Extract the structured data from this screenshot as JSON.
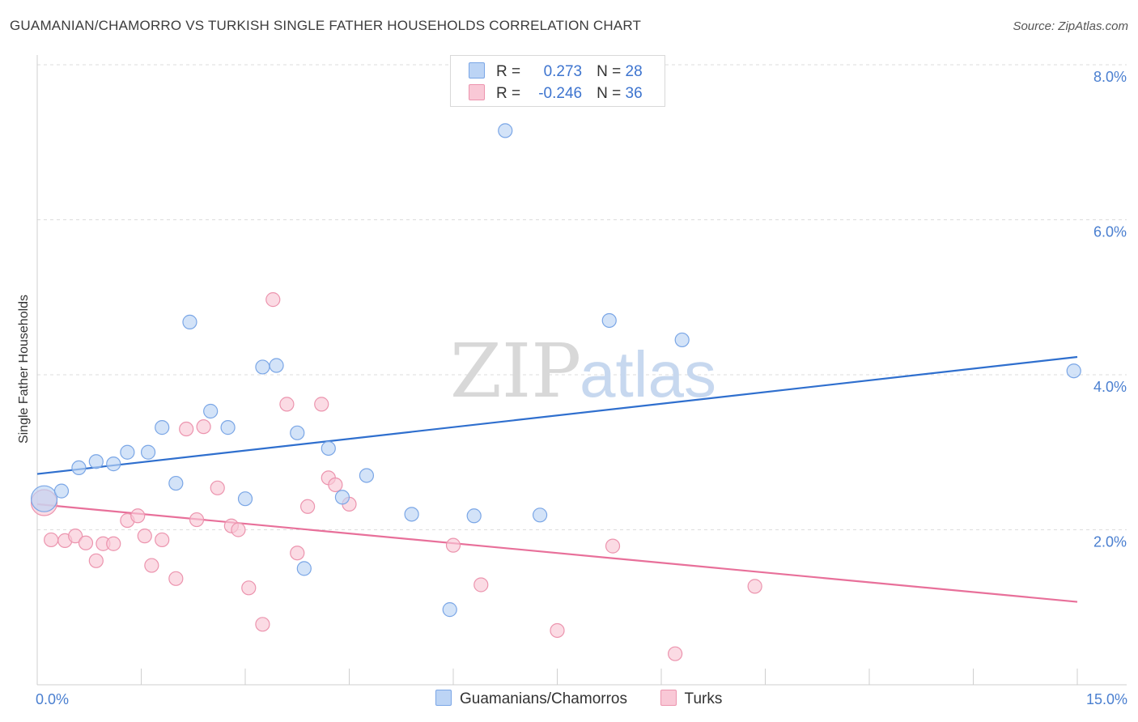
{
  "title": "GUAMANIAN/CHAMORRO VS TURKISH SINGLE FATHER HOUSEHOLDS CORRELATION CHART",
  "source": "Source: ZipAtlas.com",
  "watermark": {
    "zip": "ZIP",
    "atlas": "atlas"
  },
  "legend": {
    "r_label": "R =",
    "n_label": "N =",
    "rows": [
      {
        "r": "0.273",
        "n": "28",
        "fill": "#bcd4f5",
        "stroke": "#7aa6e6"
      },
      {
        "r": "-0.246",
        "n": "36",
        "fill": "#f9c8d6",
        "stroke": "#ec94ae"
      }
    ]
  },
  "bottom_legend": [
    {
      "label": "Guamanians/Chamorros",
      "fill": "#bcd4f5",
      "stroke": "#7aa6e6"
    },
    {
      "label": "Turks",
      "fill": "#f9c8d6",
      "stroke": "#ec94ae"
    }
  ],
  "chart_data": {
    "type": "scatter",
    "title": "GUAMANIAN/CHAMORRO VS TURKISH SINGLE FATHER HOUSEHOLDS CORRELATION CHART",
    "xlabel": "",
    "ylabel": "Single Father Households",
    "xlim": [
      0,
      15
    ],
    "ylim": [
      0,
      8
    ],
    "x_tick_labels": [
      {
        "value": 0,
        "label": "0.0%"
      },
      {
        "value": 15,
        "label": "15.0%"
      }
    ],
    "y_tick_labels": [
      {
        "value": 2,
        "label": "2.0%"
      },
      {
        "value": 4,
        "label": "4.0%"
      },
      {
        "value": 6,
        "label": "6.0%"
      },
      {
        "value": 8,
        "label": "8.0%"
      }
    ],
    "grid": "horizontal dashed",
    "legend_position": "top-center",
    "series": [
      {
        "name": "Guamanians/Chamorros",
        "color": "#7aa6e6",
        "fill": "#bcd4f5",
        "trend_color": "#2f6fce",
        "trend": [
          [
            0.0,
            2.72
          ],
          [
            15.0,
            4.23
          ]
        ],
        "points": [
          [
            0.1,
            2.4
          ],
          [
            0.35,
            2.5
          ],
          [
            0.6,
            2.8
          ],
          [
            0.85,
            2.88
          ],
          [
            1.1,
            2.85
          ],
          [
            1.3,
            3.0
          ],
          [
            1.6,
            3.0
          ],
          [
            1.8,
            3.32
          ],
          [
            2.0,
            2.6
          ],
          [
            2.2,
            4.68
          ],
          [
            2.5,
            3.53
          ],
          [
            2.75,
            3.32
          ],
          [
            3.0,
            2.4
          ],
          [
            3.25,
            4.1
          ],
          [
            3.45,
            4.12
          ],
          [
            3.75,
            3.25
          ],
          [
            3.85,
            1.5
          ],
          [
            4.2,
            3.05
          ],
          [
            4.4,
            2.42
          ],
          [
            4.75,
            2.7
          ],
          [
            5.4,
            2.2
          ],
          [
            5.95,
            0.97
          ],
          [
            6.3,
            2.18
          ],
          [
            6.75,
            7.15
          ],
          [
            7.25,
            2.19
          ],
          [
            8.25,
            4.7
          ],
          [
            9.3,
            4.45
          ],
          [
            14.95,
            4.05
          ]
        ]
      },
      {
        "name": "Turks",
        "color": "#ec94ae",
        "fill": "#f9c8d6",
        "trend_color": "#e8709a",
        "trend": [
          [
            0.0,
            2.33
          ],
          [
            15.0,
            1.07
          ]
        ],
        "points": [
          [
            0.1,
            2.35
          ],
          [
            0.2,
            1.87
          ],
          [
            0.4,
            1.86
          ],
          [
            0.55,
            1.92
          ],
          [
            0.7,
            1.83
          ],
          [
            0.85,
            1.6
          ],
          [
            0.95,
            1.82
          ],
          [
            1.1,
            1.82
          ],
          [
            1.3,
            2.12
          ],
          [
            1.45,
            2.18
          ],
          [
            1.55,
            1.92
          ],
          [
            1.65,
            1.54
          ],
          [
            1.8,
            1.87
          ],
          [
            2.0,
            1.37
          ],
          [
            2.15,
            3.3
          ],
          [
            2.3,
            2.13
          ],
          [
            2.4,
            3.33
          ],
          [
            2.6,
            2.54
          ],
          [
            2.8,
            2.05
          ],
          [
            2.9,
            2.0
          ],
          [
            3.05,
            1.25
          ],
          [
            3.25,
            0.78
          ],
          [
            3.4,
            4.97
          ],
          [
            3.6,
            3.62
          ],
          [
            3.75,
            1.7
          ],
          [
            3.9,
            2.3
          ],
          [
            4.1,
            3.62
          ],
          [
            4.2,
            2.67
          ],
          [
            4.3,
            2.58
          ],
          [
            4.5,
            2.33
          ],
          [
            6.0,
            1.8
          ],
          [
            6.4,
            1.29
          ],
          [
            7.5,
            0.7
          ],
          [
            8.3,
            1.79
          ],
          [
            9.2,
            0.4
          ],
          [
            10.35,
            1.27
          ]
        ]
      }
    ]
  }
}
